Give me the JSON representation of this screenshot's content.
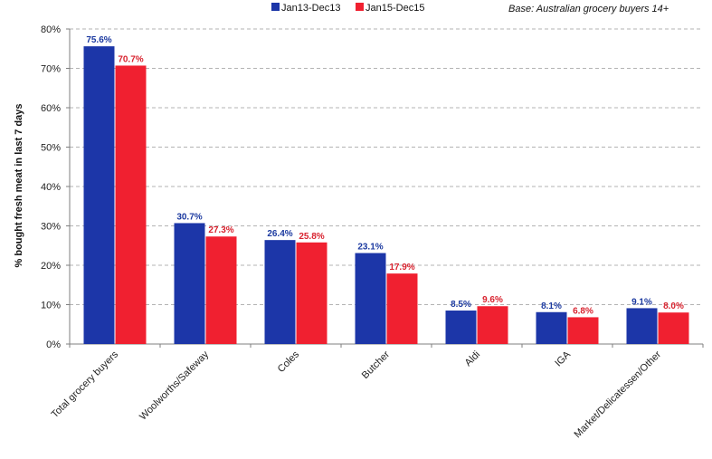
{
  "chart_data": {
    "type": "bar",
    "categories": [
      "Total grocery buyers",
      "Woolworths/Safeway",
      "Coles",
      "Butcher",
      "Aldi",
      "IGA",
      "Market/Delicatessen/Other"
    ],
    "series": [
      {
        "name": "Jan13-Dec13",
        "color": "#1c36a8",
        "label_color": "#1c3aa0",
        "values": [
          75.6,
          30.7,
          26.4,
          23.1,
          8.5,
          8.1,
          9.1
        ],
        "labels": [
          "75.6%",
          "30.7%",
          "26.4%",
          "23.1%",
          "8.5%",
          "8.1%",
          "9.1%"
        ]
      },
      {
        "name": "Jan15-Dec15",
        "color": "#f02030",
        "label_color": "#d8232f",
        "values": [
          70.7,
          27.3,
          25.8,
          17.9,
          9.6,
          6.8,
          8.0
        ],
        "labels": [
          "70.7%",
          "27.3%",
          "25.8%",
          "17.9%",
          "9.6%",
          "6.8%",
          "8.0%"
        ]
      }
    ],
    "ylabel": "% bought fresh meat in last 7 days",
    "xlabel": "",
    "ylim": [
      0,
      80
    ],
    "yticks": [
      0,
      10,
      20,
      30,
      40,
      50,
      60,
      70,
      80
    ],
    "ytick_labels": [
      "0%",
      "10%",
      "20%",
      "30%",
      "40%",
      "50%",
      "60%",
      "70%",
      "80%"
    ],
    "grid": "horizontal dashed",
    "legend_position": "top-center",
    "annotation": "Base: Australian grocery buyers 14+"
  }
}
